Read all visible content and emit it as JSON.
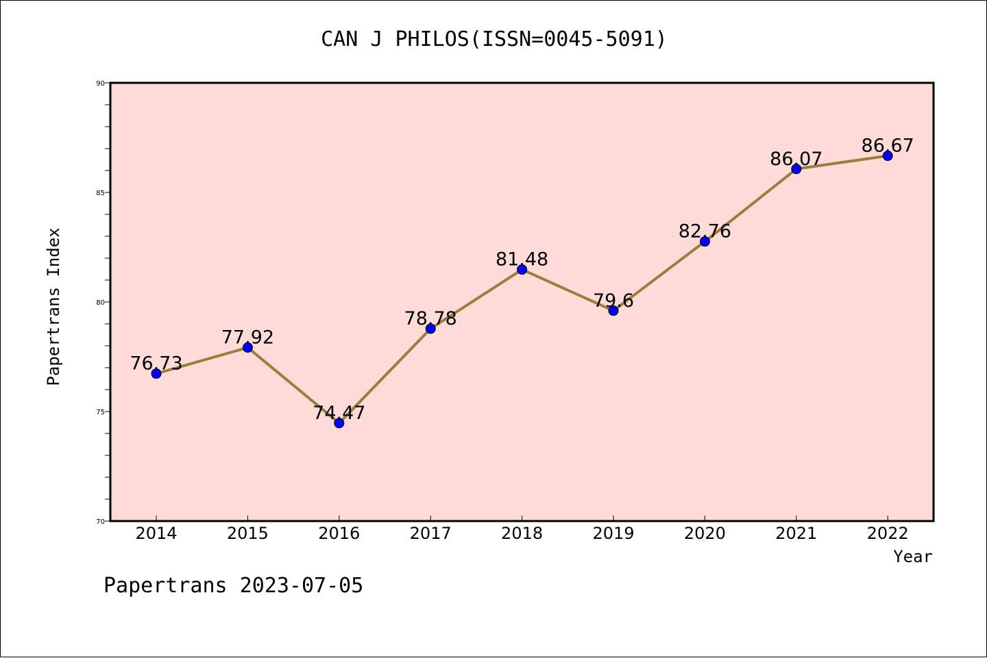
{
  "title": "CAN J PHILOS(ISSN=0045-5091)",
  "footer": "Papertrans 2023-07-05",
  "colors": {
    "plot_background": "#fddbd8",
    "line": "#9a7f3c",
    "marker": "#0000ff",
    "text": "#000000"
  },
  "chart_data": {
    "type": "line",
    "title": "CAN J PHILOS(ISSN=0045-5091)",
    "xlabel": "Year",
    "ylabel": "Papertrans Index",
    "categories": [
      "2014",
      "2015",
      "2016",
      "2017",
      "2018",
      "2019",
      "2020",
      "2021",
      "2022"
    ],
    "values": [
      76.73,
      77.92,
      74.47,
      78.78,
      81.48,
      79.6,
      82.76,
      86.07,
      86.67
    ],
    "data_labels": [
      "76.73",
      "77.92",
      "74.47",
      "78.78",
      "81.48",
      "79.6",
      "82.76",
      "86.07",
      "86.67"
    ],
    "ylim": [
      70,
      90
    ],
    "yticks": [
      "70",
      "75",
      "80",
      "85",
      "90"
    ],
    "grid": false,
    "legend": "none"
  }
}
